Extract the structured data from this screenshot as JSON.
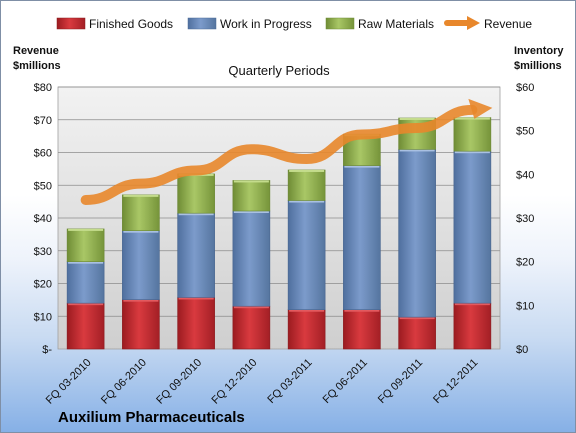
{
  "chart_data": {
    "type": "bar",
    "title": "Quarterly Periods",
    "company": "Auxilium Pharmaceuticals",
    "left_axis_title": [
      "Revenue",
      "$millions"
    ],
    "right_axis_title": [
      "Inventory",
      "$millions"
    ],
    "categories": [
      "FQ 03-2010",
      "FQ 06-2010",
      "FQ 09-2010",
      "FQ 12-2010",
      "FQ 03-2011",
      "FQ 06-2011",
      "FQ 09-2011",
      "FQ 12-2011"
    ],
    "left_ticks": [
      "$-",
      "$10",
      "$20",
      "$30",
      "$40",
      "$50",
      "$60",
      "$70",
      "$80"
    ],
    "right_ticks": [
      "$0",
      "$10",
      "$20",
      "$30",
      "$40",
      "$50",
      "$60"
    ],
    "left_ylim": [
      0,
      80
    ],
    "right_ylim": [
      0,
      60
    ],
    "legend_position": "top",
    "grid": true,
    "series": [
      {
        "name": "Finished Goods",
        "axis": "right",
        "kind": "stacked-bar",
        "color": "#c0272d",
        "values": [
          10.5,
          11.3,
          11.8,
          9.8,
          9.0,
          9.0,
          7.3,
          10.5
        ]
      },
      {
        "name": "Work in Progress",
        "axis": "right",
        "kind": "stacked-bar",
        "color": "#6e8fbf",
        "values": [
          9.5,
          15.8,
          19.3,
          21.8,
          25.0,
          33.0,
          38.4,
          34.8
        ]
      },
      {
        "name": "Raw Materials",
        "axis": "right",
        "kind": "stacked-bar",
        "color": "#9bbb59",
        "values": [
          7.5,
          8.2,
          9.0,
          7.0,
          7.0,
          7.2,
          7.2,
          7.7
        ]
      },
      {
        "name": "Revenue",
        "axis": "left",
        "kind": "line",
        "color": "#e8872b",
        "values": [
          45.5,
          50.5,
          54.5,
          61.0,
          58.0,
          65.5,
          67.5,
          73.0
        ]
      }
    ]
  }
}
